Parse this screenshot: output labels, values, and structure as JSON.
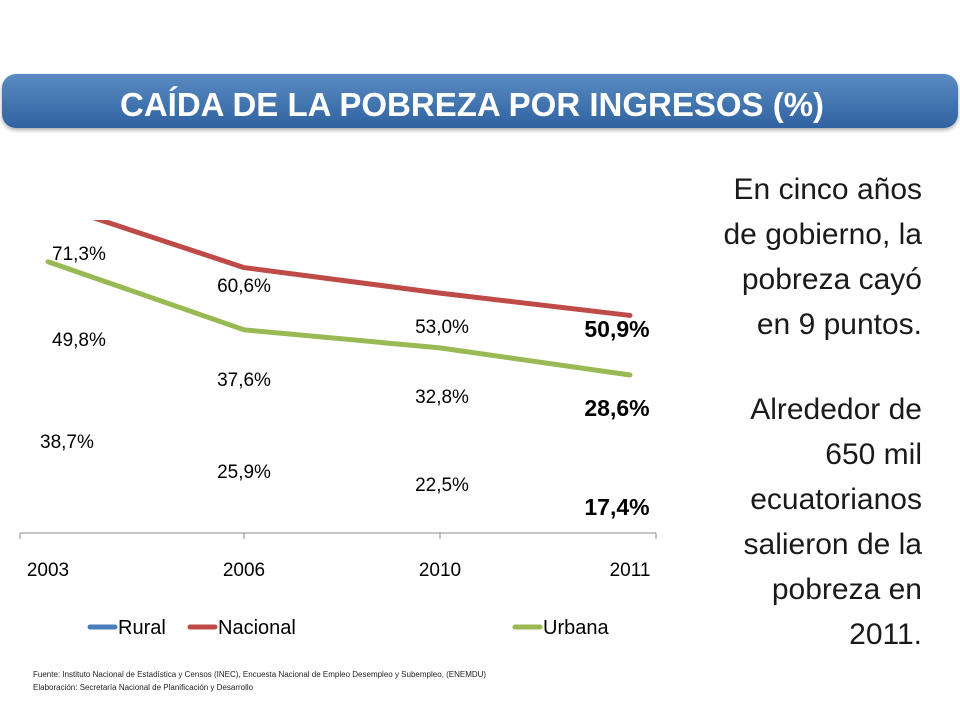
{
  "title": "CAÍDA DE LA POBREZA POR INGRESOS (%)",
  "side_text": {
    "p1": [
      "En cinco años",
      "de gobierno, la",
      "pobreza cayó",
      "en 9 puntos."
    ],
    "p2": [
      "Alrededor de",
      "650 mil",
      "ecuatorianos",
      "salieron de la",
      "pobreza en",
      "2011."
    ]
  },
  "footnote": {
    "source": "Fuente: Instituto Nacional de Estadística y Censos (INEC), Encuesta Nacional de Empleo Desempleo y Subempleo, (ENEMDU)",
    "elaboration": "Elaboración: Secretaría Nacional de Planificación y Desarrollo"
  },
  "colors": {
    "rural": "#4a7ebb",
    "nacional": "#be4b48",
    "urbana": "#98b954",
    "banner": "#3a6aa8"
  },
  "chart_data": {
    "type": "line",
    "categories": [
      "2003",
      "2006",
      "2010",
      "2011"
    ],
    "series": [
      {
        "name": "Rural",
        "values": [
          71.3,
          60.6,
          53.0,
          50.9
        ],
        "labels": [
          "71,3%",
          "60,6%",
          "53,0%",
          "50,9%"
        ]
      },
      {
        "name": "Nacional",
        "values": [
          49.8,
          37.6,
          32.8,
          28.6
        ],
        "labels": [
          "49,8%",
          "37,6%",
          "32,8%",
          "28,6%"
        ]
      },
      {
        "name": "Urbana",
        "values": [
          38.7,
          25.9,
          22.5,
          17.4
        ],
        "labels": [
          "38,7%",
          "25,9%",
          "22,5%",
          "17,4%"
        ]
      }
    ],
    "grid": false,
    "legend": "bottom"
  }
}
